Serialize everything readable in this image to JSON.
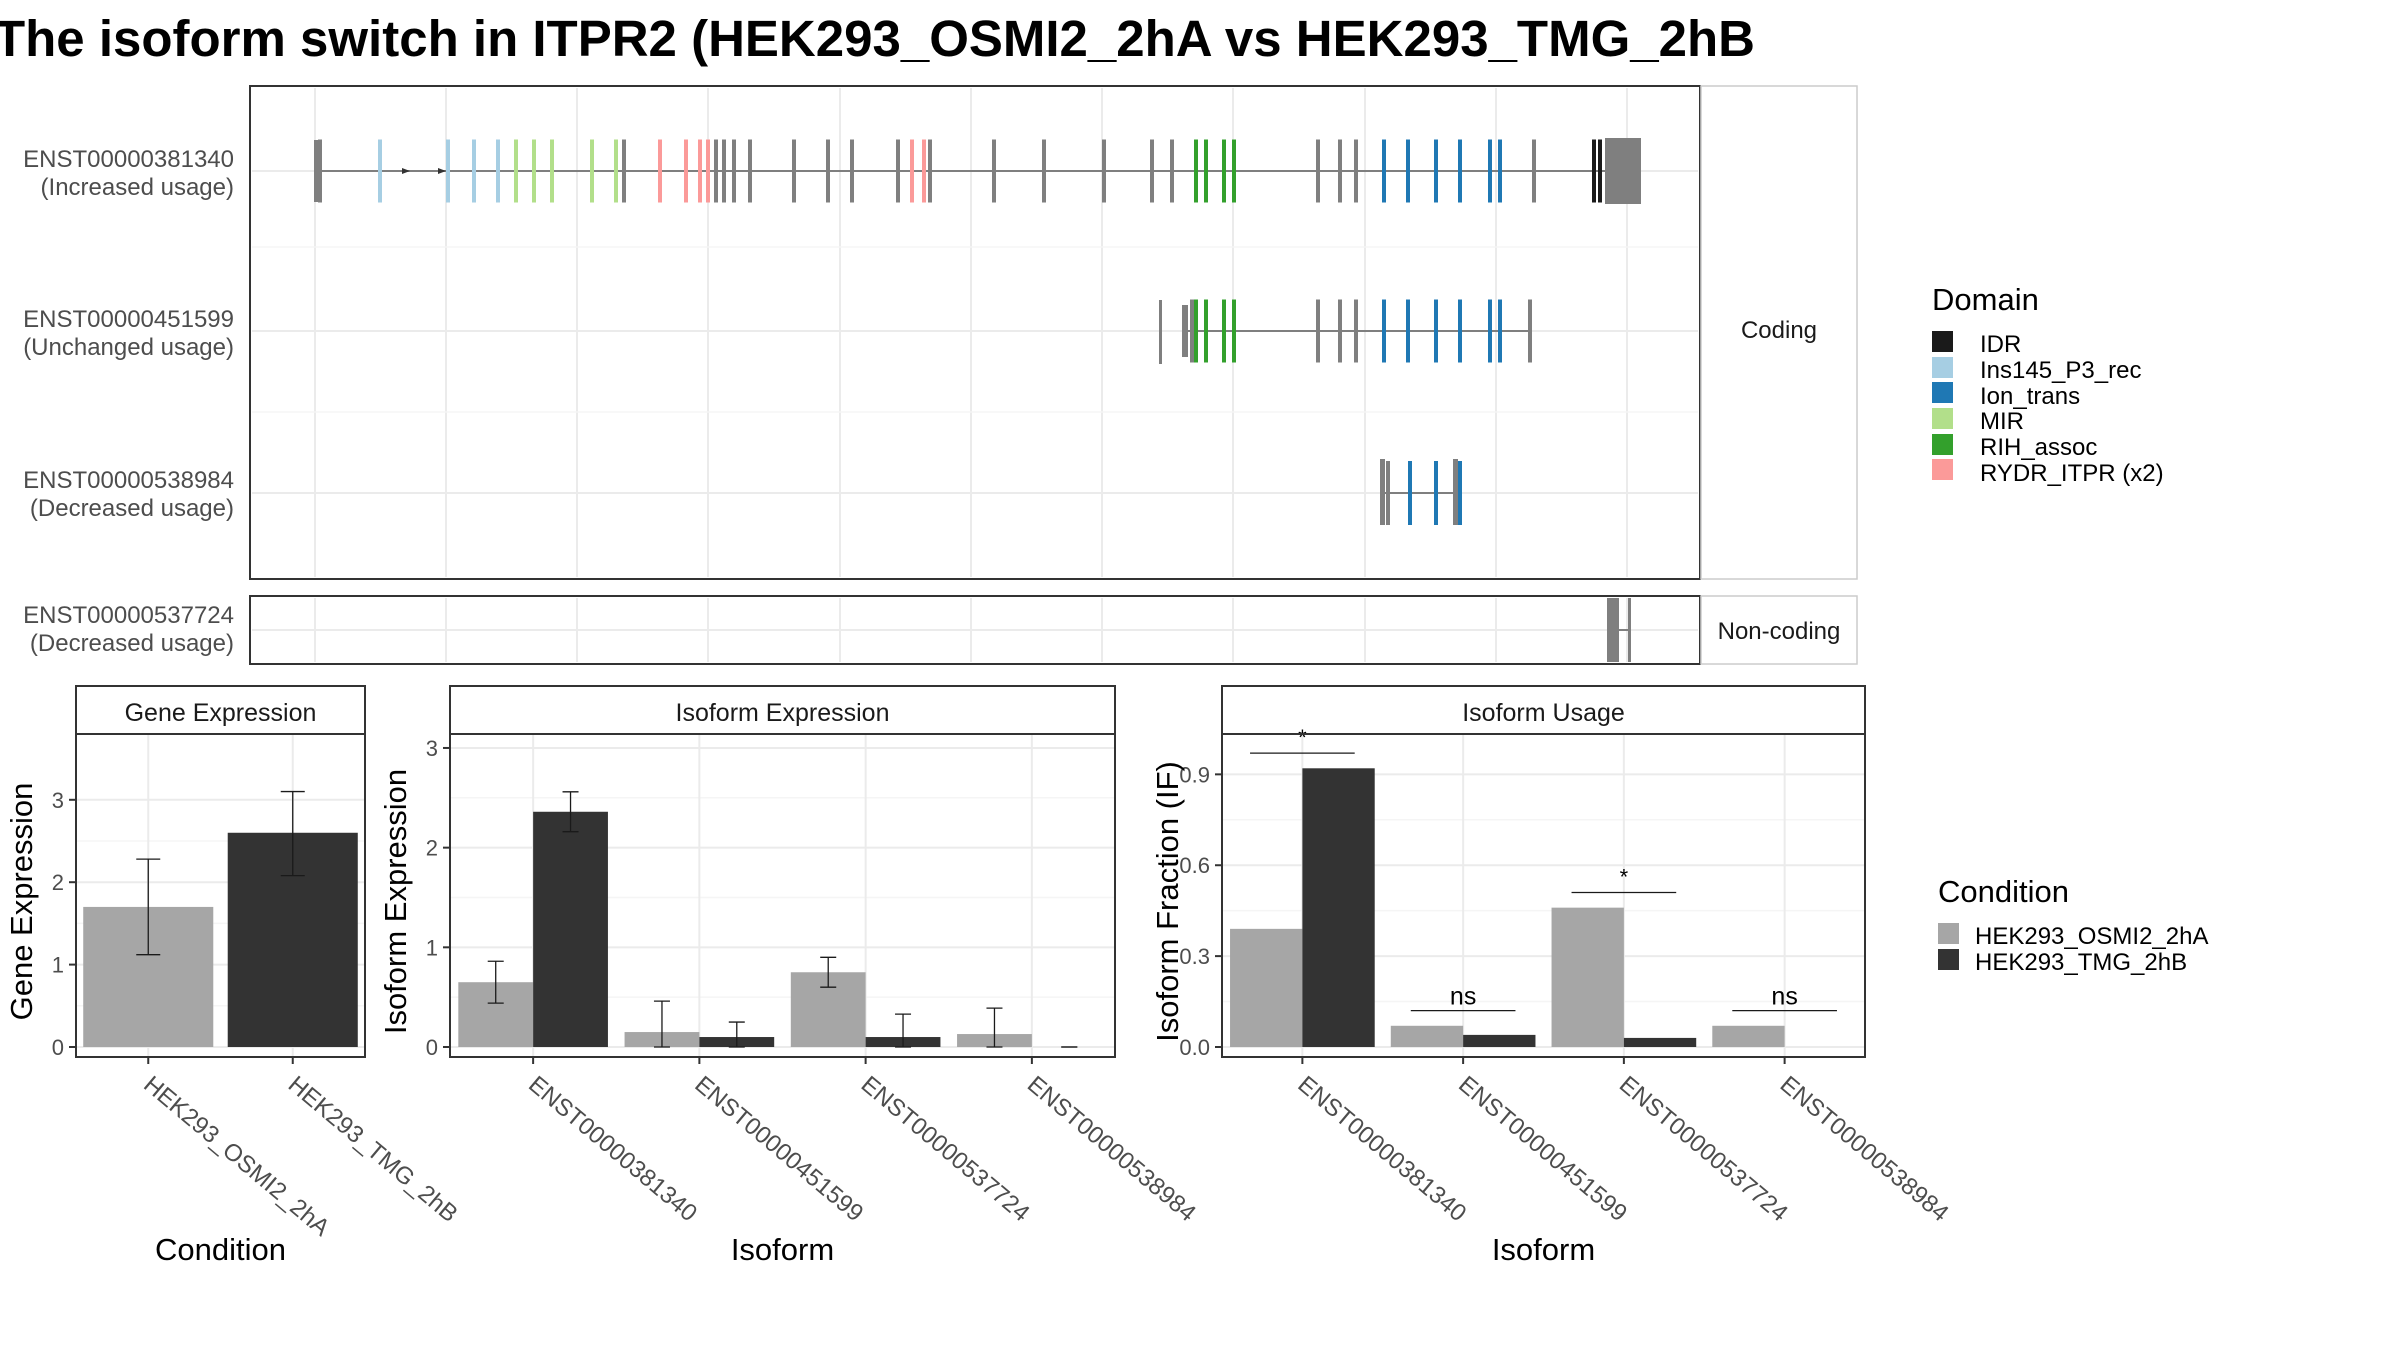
{
  "title": "The isoform switch in ITPR2 (HEK293_OSMI2_2hA vs HEK293_TMG_2hB",
  "colors": {
    "IDR": "#1a1a1a",
    "Ins145_P3_rec": "#a6cee3",
    "Ion_trans": "#1f78b4",
    "MIR": "#b2df8a",
    "RIH_assoc": "#33a02c",
    "RYDR_ITPR": "#fb9a99",
    "exon": "#7f7f7f",
    "cond_a": "#a6a6a6",
    "cond_b": "#333333"
  },
  "transcripts": {
    "facet_coding": "Coding",
    "facet_noncoding": "Non-coding",
    "rows": [
      {
        "id": "ENST00000381340",
        "usage": "(Increased usage)"
      },
      {
        "id": "ENST00000451599",
        "usage": "(Unchanged usage)"
      },
      {
        "id": "ENST00000538984",
        "usage": "(Decreased usage)"
      },
      {
        "id": "ENST00000537724",
        "usage": "(Decreased usage)"
      }
    ]
  },
  "legend_domain": {
    "title": "Domain",
    "items": [
      {
        "label": "IDR",
        "color": "#1a1a1a"
      },
      {
        "label": "Ins145_P3_rec",
        "color": "#a6cee3"
      },
      {
        "label": "Ion_trans",
        "color": "#1f78b4"
      },
      {
        "label": "MIR",
        "color": "#b2df8a"
      },
      {
        "label": "RIH_assoc",
        "color": "#33a02c"
      },
      {
        "label": "RYDR_ITPR (x2)",
        "color": "#fb9a99"
      }
    ]
  },
  "legend_condition": {
    "title": "Condition",
    "items": [
      {
        "label": "HEK293_OSMI2_2hA",
        "color": "#a6a6a6"
      },
      {
        "label": "HEK293_TMG_2hB",
        "color": "#333333"
      }
    ]
  },
  "chart_data": [
    {
      "type": "bar",
      "title": "Gene Expression",
      "xlabel": "Condition",
      "ylabel": "Gene Expression",
      "ylim": [
        0,
        3.75
      ],
      "yticks": [
        0,
        1,
        2,
        3
      ],
      "categories": [
        "HEK293_OSMI2_2hA",
        "HEK293_TMG_2hB"
      ],
      "values": [
        1.7,
        2.6
      ],
      "errors": [
        [
          1.12,
          2.28
        ],
        [
          2.08,
          3.1
        ]
      ]
    },
    {
      "type": "bar",
      "title": "Isoform Expression",
      "xlabel": "Isoform",
      "ylabel": "Isoform Expression",
      "ylim": [
        0,
        3.1
      ],
      "yticks": [
        0,
        1,
        2,
        3
      ],
      "categories": [
        "ENST00000381340",
        "ENST00000451599",
        "ENST00000537724",
        "ENST00000538984"
      ],
      "series": [
        {
          "name": "HEK293_OSMI2_2hA",
          "values": [
            0.65,
            0.15,
            0.75,
            0.13
          ],
          "errors": [
            [
              0.44,
              0.86
            ],
            [
              0,
              0.46
            ],
            [
              0.6,
              0.9
            ],
            [
              0,
              0.39
            ]
          ]
        },
        {
          "name": "HEK293_TMG_2hB",
          "values": [
            2.36,
            0.1,
            0.1,
            0.0
          ],
          "errors": [
            [
              2.16,
              2.56
            ],
            [
              0,
              0.25
            ],
            [
              0,
              0.33
            ],
            [
              0,
              0
            ]
          ]
        }
      ]
    },
    {
      "type": "bar",
      "title": "Isoform Usage",
      "xlabel": "Isoform",
      "ylabel": "Isoform Fraction (IF)",
      "ylim": [
        0,
        1.02
      ],
      "yticks": [
        0.0,
        0.3,
        0.6,
        0.9
      ],
      "ytick_labels": [
        "0.0",
        "0.3",
        "0.6",
        "0.9"
      ],
      "categories": [
        "ENST00000381340",
        "ENST00000451599",
        "ENST00000537724",
        "ENST00000538984"
      ],
      "series": [
        {
          "name": "HEK293_OSMI2_2hA",
          "values": [
            0.39,
            0.07,
            0.46,
            0.07
          ]
        },
        {
          "name": "HEK293_TMG_2hB",
          "values": [
            0.92,
            0.04,
            0.03,
            0.0
          ]
        }
      ],
      "significance": [
        "*",
        "ns",
        "*",
        "ns"
      ],
      "significance_y": [
        0.97,
        0.12,
        0.51,
        0.12
      ]
    }
  ]
}
